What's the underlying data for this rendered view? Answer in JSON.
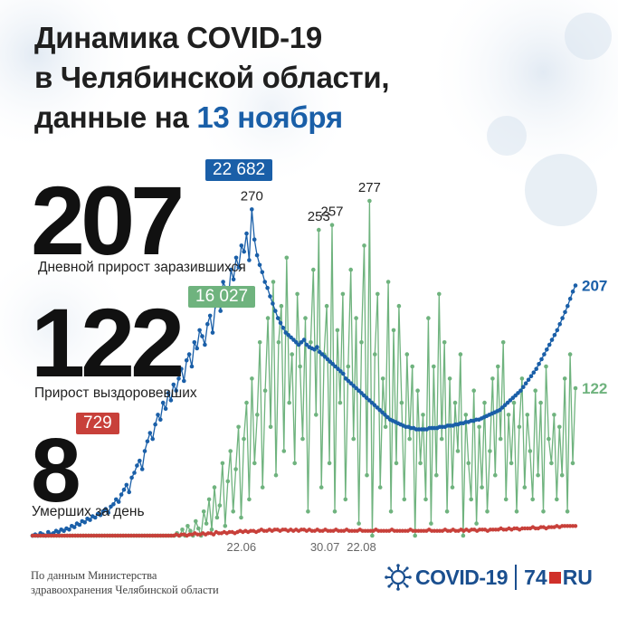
{
  "title": {
    "line1": "Динамика COVID-19",
    "line2": "в Челябинской области,",
    "line3_prefix": "данные на ",
    "line3_highlight": "13 ноября"
  },
  "stats": {
    "infected_daily": "207",
    "infected_caption": "Дневной прирост заразившихся",
    "infected_total": "22 682",
    "recovered_daily": "122",
    "recovered_caption": "Прирост выздоровевших",
    "recovered_total": "16 027",
    "deaths_daily": "8",
    "deaths_caption": "Умерших за день",
    "deaths_total": "729"
  },
  "source": {
    "line1": "По данным Министерства",
    "line2": "здравоохранения Челябинской области"
  },
  "logo": {
    "covid": "COVID-19",
    "site_num": "74",
    "site_tld": "RU"
  },
  "colors": {
    "infected": "#1a5fa8",
    "recovered": "#6fb37e",
    "deaths": "#c8403a",
    "title_accent": "#1a5fa8"
  },
  "chart_data": {
    "type": "line",
    "x_start": "2020-04-01",
    "x_ticks": [
      "22.06",
      "30.07",
      "22.08"
    ],
    "y_range": [
      0,
      300
    ],
    "annotations": [
      {
        "series": "infected",
        "label": "270"
      },
      {
        "series": "recovered",
        "label": "253"
      },
      {
        "series": "recovered",
        "label": "257"
      },
      {
        "series": "recovered",
        "label": "277"
      },
      {
        "series": "infected",
        "label": "207"
      },
      {
        "series": "recovered",
        "label": "122"
      }
    ],
    "series": [
      {
        "name": "infected",
        "values": [
          0,
          1,
          0,
          2,
          1,
          0,
          3,
          1,
          2,
          4,
          3,
          5,
          4,
          6,
          5,
          8,
          7,
          10,
          9,
          12,
          11,
          14,
          13,
          16,
          15,
          18,
          17,
          20,
          22,
          19,
          24,
          26,
          30,
          28,
          34,
          38,
          42,
          36,
          48,
          52,
          58,
          62,
          55,
          70,
          78,
          85,
          80,
          92,
          100,
          96,
          110,
          105,
          118,
          112,
          125,
          120,
          130,
          138,
          128,
          145,
          150,
          140,
          160,
          155,
          170,
          165,
          158,
          175,
          182,
          168,
          190,
          200,
          186,
          210,
          205,
          195,
          220,
          212,
          230,
          222,
          240,
          235,
          250,
          228,
          270,
          245,
          232,
          224,
          218,
          210,
          205,
          198,
          192,
          186,
          180,
          176,
          172,
          168,
          166,
          164,
          162,
          160,
          158,
          160,
          162,
          158,
          156,
          155,
          154,
          156,
          152,
          150,
          148,
          146,
          144,
          142,
          140,
          138,
          136,
          134,
          130,
          128,
          126,
          124,
          122,
          120,
          118,
          116,
          114,
          112,
          110,
          108,
          106,
          104,
          102,
          100,
          98,
          96,
          95,
          94,
          93,
          92,
          91,
          90,
          90,
          89,
          89,
          88,
          88,
          88,
          88,
          88,
          89,
          89,
          89,
          89,
          90,
          90,
          90,
          91,
          91,
          91,
          92,
          92,
          93,
          93,
          94,
          94,
          95,
          95,
          96,
          96,
          97,
          98,
          99,
          100,
          101,
          102,
          103,
          104,
          106,
          108,
          110,
          112,
          114,
          116,
          118,
          120,
          123,
          126,
          129,
          132,
          135,
          138,
          142,
          146,
          150,
          154,
          158,
          162,
          166,
          170,
          175,
          180,
          185,
          190,
          196,
          202,
          207
        ]
      },
      {
        "name": "recovered",
        "values": [
          0,
          0,
          0,
          0,
          0,
          0,
          0,
          0,
          0,
          0,
          0,
          0,
          0,
          0,
          0,
          0,
          0,
          0,
          0,
          0,
          0,
          0,
          0,
          0,
          0,
          0,
          0,
          0,
          0,
          0,
          0,
          0,
          0,
          0,
          0,
          0,
          0,
          0,
          0,
          0,
          0,
          0,
          0,
          0,
          0,
          0,
          0,
          0,
          0,
          0,
          0,
          0,
          0,
          0,
          2,
          0,
          5,
          0,
          8,
          4,
          0,
          12,
          6,
          0,
          20,
          10,
          30,
          5,
          40,
          15,
          25,
          60,
          8,
          45,
          70,
          20,
          55,
          90,
          15,
          80,
          110,
          30,
          130,
          60,
          100,
          160,
          40,
          120,
          180,
          90,
          210,
          50,
          160,
          190,
          70,
          230,
          110,
          150,
          60,
          200,
          140,
          80,
          180,
          20,
          160,
          220,
          100,
          253,
          40,
          150,
          190,
          60,
          257,
          20,
          170,
          110,
          200,
          30,
          140,
          220,
          80,
          180,
          10,
          160,
          240,
          50,
          277,
          0,
          150,
          200,
          40,
          130,
          90,
          210,
          20,
          170,
          60,
          190,
          110,
          30,
          150,
          80,
          140,
          0,
          120,
          60,
          100,
          30,
          180,
          10,
          140,
          50,
          200,
          80,
          160,
          20,
          130,
          40,
          110,
          70,
          150,
          0,
          100,
          60,
          30,
          120,
          10,
          90,
          40,
          110,
          20,
          70,
          130,
          50,
          140,
          80,
          160,
          30,
          100,
          60,
          110,
          20,
          90,
          130,
          40,
          100,
          70,
          30,
          120,
          50,
          110,
          20,
          140,
          80,
          60,
          100,
          30,
          90,
          50,
          130,
          20,
          150,
          60,
          122
        ]
      },
      {
        "name": "deaths",
        "values": [
          0,
          0,
          0,
          0,
          0,
          0,
          0,
          0,
          0,
          0,
          0,
          0,
          0,
          0,
          0,
          0,
          0,
          0,
          0,
          0,
          0,
          0,
          0,
          0,
          0,
          0,
          0,
          0,
          0,
          0,
          0,
          0,
          0,
          0,
          0,
          0,
          0,
          0,
          0,
          0,
          0,
          0,
          0,
          0,
          0,
          0,
          0,
          0,
          0,
          0,
          0,
          0,
          0,
          0,
          1,
          0,
          1,
          1,
          0,
          1,
          1,
          2,
          1,
          1,
          2,
          1,
          2,
          2,
          1,
          3,
          2,
          2,
          3,
          2,
          3,
          3,
          2,
          3,
          4,
          3,
          4,
          3,
          4,
          4,
          3,
          4,
          5,
          4,
          4,
          5,
          4,
          5,
          5,
          4,
          5,
          5,
          4,
          5,
          4,
          5,
          4,
          5,
          5,
          4,
          5,
          4,
          4,
          5,
          4,
          4,
          5,
          4,
          4,
          4,
          5,
          4,
          4,
          4,
          5,
          4,
          4,
          4,
          4,
          5,
          4,
          4,
          4,
          4,
          4,
          5,
          4,
          4,
          4,
          4,
          4,
          5,
          4,
          4,
          4,
          4,
          4,
          4,
          5,
          4,
          4,
          4,
          4,
          4,
          4,
          5,
          4,
          4,
          4,
          4,
          4,
          5,
          4,
          4,
          5,
          4,
          4,
          5,
          4,
          5,
          4,
          5,
          5,
          4,
          5,
          5,
          5,
          4,
          5,
          5,
          5,
          5,
          6,
          5,
          5,
          6,
          5,
          6,
          6,
          5,
          6,
          6,
          6,
          6,
          7,
          6,
          6,
          7,
          7,
          6,
          7,
          7,
          7,
          8,
          7,
          8,
          8,
          8,
          8,
          8,
          8
        ]
      }
    ]
  }
}
